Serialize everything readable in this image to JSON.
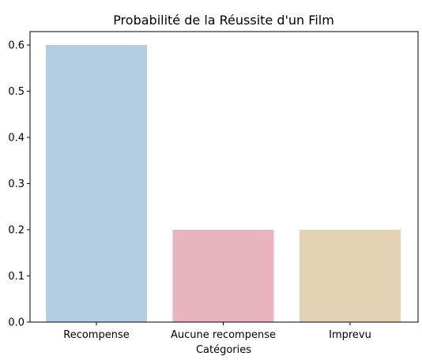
{
  "chart_data": {
    "type": "bar",
    "title": "Probabilité de la Réussite d'un Film",
    "xlabel": "Catégories",
    "ylabel": "",
    "categories": [
      "Recompense",
      "Aucune recompense",
      "Imprevu"
    ],
    "values": [
      0.6,
      0.2,
      0.2
    ],
    "colors": [
      "#b3cde3",
      "#e8b4c0",
      "#e4d2b4"
    ],
    "ylim": [
      0,
      0.6
    ],
    "yticks": [
      "0.0",
      "0.1",
      "0.2",
      "0.3",
      "0.4",
      "0.5",
      "0.6"
    ],
    "grid": false,
    "legend": "none"
  }
}
